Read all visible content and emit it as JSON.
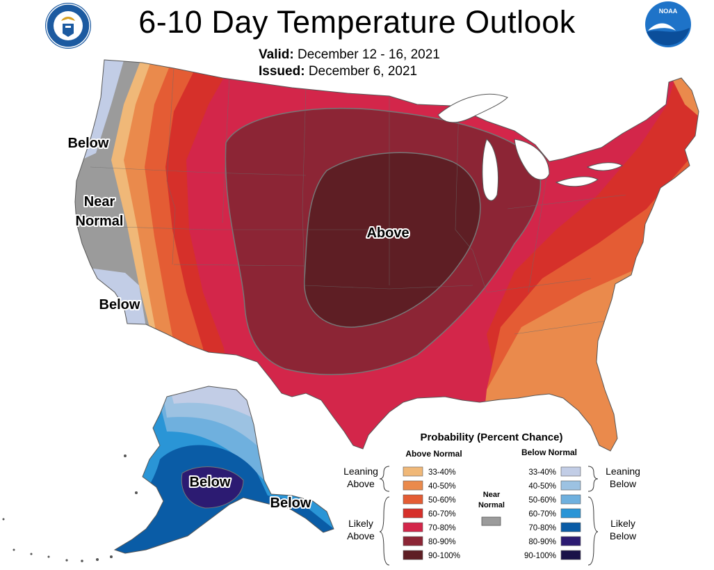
{
  "title": "6-10 Day Temperature Outlook",
  "valid_label": "Valid:",
  "valid_value": "December 12 - 16, 2021",
  "issued_label": "Issued:",
  "issued_value": "December 6, 2021",
  "logos": {
    "left": "department-of-commerce-seal",
    "right": "noaa-logo",
    "noaa_text": "NOAA"
  },
  "map_labels": {
    "below_nw": "Below",
    "near_normal_1": "Near",
    "near_normal_2": "Normal",
    "below_sw": "Below",
    "above_center": "Above",
    "below_alaska": "Below",
    "below_se_alaska": "Below"
  },
  "legend": {
    "title": "Probability (Percent Chance)",
    "above_header": "Above Normal",
    "below_header": "Below Normal",
    "near_header_1": "Near",
    "near_header_2": "Normal",
    "leaning_above_1": "Leaning",
    "leaning_above_2": "Above",
    "likely_above_1": "Likely",
    "likely_above_2": "Above",
    "leaning_below_1": "Leaning",
    "leaning_below_2": "Below",
    "likely_below_1": "Likely",
    "likely_below_2": "Below",
    "above_classes": [
      {
        "label": "33-40%",
        "color": "#f0b878"
      },
      {
        "label": "40-50%",
        "color": "#ea8a4c"
      },
      {
        "label": "50-60%",
        "color": "#e45c34"
      },
      {
        "label": "60-70%",
        "color": "#d6302a"
      },
      {
        "label": "70-80%",
        "color": "#d3264a"
      },
      {
        "label": "80-90%",
        "color": "#8c2535"
      },
      {
        "label": "90-100%",
        "color": "#5e1e24"
      }
    ],
    "below_classes": [
      {
        "label": "33-40%",
        "color": "#c2cde6"
      },
      {
        "label": "40-50%",
        "color": "#9cc2e2"
      },
      {
        "label": "50-60%",
        "color": "#6fb0de"
      },
      {
        "label": "60-70%",
        "color": "#2a95d6"
      },
      {
        "label": "70-80%",
        "color": "#0a5ca6"
      },
      {
        "label": "80-90%",
        "color": "#2c1b72"
      },
      {
        "label": "90-100%",
        "color": "#1a1248"
      }
    ],
    "near_normal_color": "#9b9b9b"
  }
}
